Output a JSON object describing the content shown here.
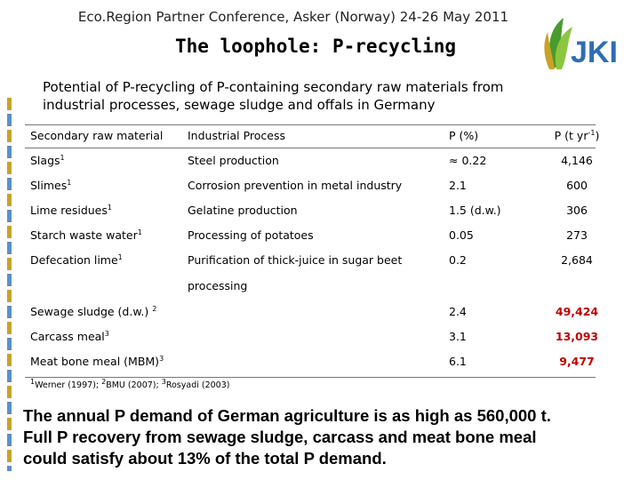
{
  "header": {
    "conference": "Eco.Region Partner Conference, Asker (Norway) 24-26 May 2011",
    "title": "The loophole: P-recycling",
    "logo_text": "JKI",
    "subtitle_line1": "Potential of P-recycling of P-containing secondary raw materials from",
    "subtitle_line2": "industrial processes, sewage sludge and offals in Germany"
  },
  "table": {
    "headers": {
      "material": "Secondary raw material",
      "process": "Industrial Process",
      "p_percent": "P (%)",
      "p_tons": "P (t yr",
      "p_tons_exp": "-1",
      "p_tons_close": ")"
    },
    "rows": [
      {
        "material": "Slags",
        "ref": "1",
        "process": "Steel production",
        "p_percent": "≈ 0.22",
        "p_tons": "4,146"
      },
      {
        "material": "Slimes",
        "ref": "1",
        "process": "Corrosion prevention in metal industry",
        "p_percent": "2.1",
        "p_tons": "600"
      },
      {
        "material": "Lime residues",
        "ref": "1",
        "process": "Gelatine production",
        "p_percent": "1.5 (d.w.)",
        "p_tons": "306"
      },
      {
        "material": "Starch waste water",
        "ref": "1",
        "process": "Processing of potatoes",
        "p_percent": "0.05",
        "p_tons": "273"
      },
      {
        "material": "Defecation lime",
        "ref": "1",
        "process": "Purification of thick-juice in sugar beet",
        "process_cont": "processing",
        "p_percent": "0.2",
        "p_tons": "2,684"
      },
      {
        "material": "Sewage sludge (d.w.)",
        "ref": "2",
        "process": "",
        "p_percent": "2.4",
        "p_tons": "49,424"
      },
      {
        "material": "Carcass meal",
        "ref": "3",
        "process": "",
        "p_percent": "3.1",
        "p_tons": "13,093"
      },
      {
        "material": "Meat bone meal (MBM)",
        "ref": "3",
        "process": "",
        "p_percent": "6.1",
        "p_tons": "9,477"
      }
    ],
    "footnote": {
      "n1": "1",
      "t1": "Werner (1997); ",
      "n2": "2",
      "t2": "BMU (2007); ",
      "n3": "3",
      "t3": "Rosyadi (2003)"
    }
  },
  "summary": {
    "line1": "The annual P demand of German agriculture is as high as 560,000 t.",
    "line2": "Full P recovery from sewage sludge, carcass and meat bone meal",
    "line3": "could satisfy about 13% of the total P demand."
  },
  "colors": {
    "highlight": "#c00000",
    "logo_blue": "#2e6db4",
    "logo_green": "#4a9a2e"
  }
}
